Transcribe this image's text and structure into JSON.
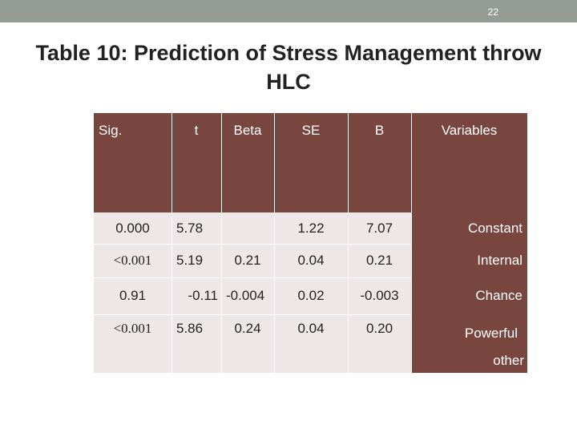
{
  "page": {
    "number": "22"
  },
  "title": "Table 10: Prediction of Stress Management throw HLC",
  "table": {
    "headers": {
      "sig": "Sig.",
      "t": "t",
      "beta": "Beta",
      "se": "SE",
      "b": "B",
      "variables": "Variables"
    },
    "rows": [
      {
        "sig": "0.000",
        "t": "5.78",
        "beta": "",
        "se": "1.22",
        "b": "7.07",
        "variable": "Constant"
      },
      {
        "sig": "<0.001",
        "t": "5.19",
        "beta": "0.21",
        "se": "0.04",
        "b": "0.21",
        "variable": "Internal"
      },
      {
        "sig": "0.91",
        "t": "-0.11",
        "beta": "-0.004",
        "se": "0.02",
        "b": "-0.003",
        "variable": "Chance"
      },
      {
        "sig": "<0.001",
        "t": "5.86",
        "beta": "0.24",
        "se": "0.04",
        "b": "0.20",
        "variable": "Powerful",
        "variable_extra": "other"
      }
    ]
  },
  "colors": {
    "header_bg": "#78463f",
    "body_bg": "#ede8e7",
    "topbar": "#949b94",
    "sig_red": "#c00000"
  }
}
